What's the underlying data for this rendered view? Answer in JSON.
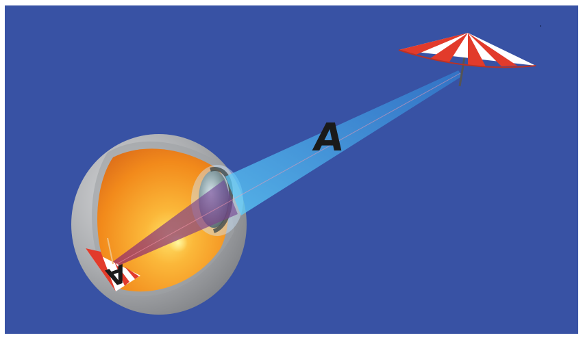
{
  "diagram": {
    "colors": {
      "background": "#3852a4",
      "eyeball_shell": "#b7b9bd",
      "vitreous": "#f7931e",
      "lens": "#8fa8b0",
      "ray_beam": "#3aa0ff",
      "umbrella_red": "#e23b2b",
      "umbrella_white": "#ffffff"
    },
    "labels": {
      "intermediate_image": "A",
      "retinal_image": "A"
    }
  }
}
